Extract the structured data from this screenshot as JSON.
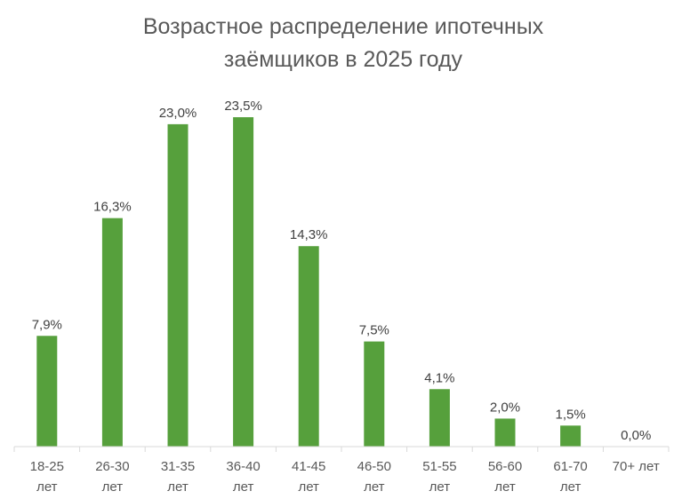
{
  "chart_data": {
    "type": "bar",
    "title_lines": [
      "Возрастное распределение ипотечных",
      "заёмщиков в 2025 году"
    ],
    "categories": [
      [
        "18-25",
        "лет"
      ],
      [
        "26-30",
        "лет"
      ],
      [
        "31-35",
        "лет"
      ],
      [
        "36-40",
        "лет"
      ],
      [
        "41-45",
        "лет"
      ],
      [
        "46-50",
        "лет"
      ],
      [
        "51-55",
        "лет"
      ],
      [
        "56-60",
        "лет"
      ],
      [
        "61-70",
        "лет"
      ],
      [
        "70+ лет"
      ]
    ],
    "values": [
      7.9,
      16.3,
      23.0,
      23.5,
      14.3,
      7.5,
      4.1,
      2.0,
      1.5,
      0.0
    ],
    "value_labels": [
      "7,9%",
      "16,3%",
      "23,0%",
      "23,5%",
      "14,3%",
      "7,5%",
      "4,1%",
      "2,0%",
      "1,5%",
      "0,0%"
    ],
    "ylim": [
      0,
      23.5
    ],
    "grid": false,
    "legend": "none",
    "colors": {
      "bar": "#56a03c",
      "title": "#595959",
      "labels": "#404040",
      "axis": "#d9d9d9"
    }
  }
}
